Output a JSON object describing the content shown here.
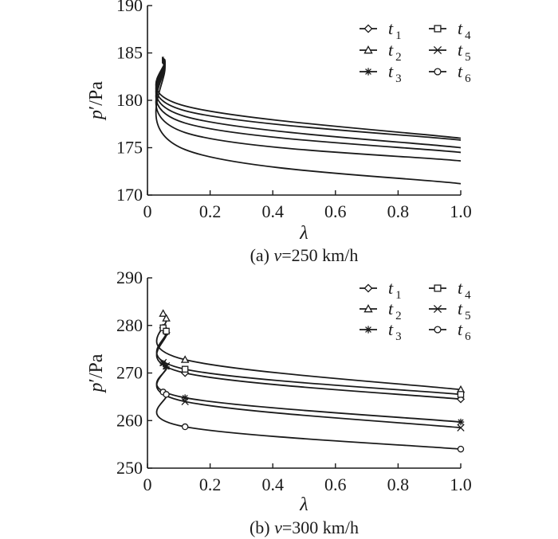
{
  "chart_data": [
    {
      "type": "line",
      "caption_prefix": "(a) ",
      "caption_var": "v",
      "caption_rest": "=250 km/h",
      "xlabel": "λ",
      "ylabel": "p",
      "ylabel_prime": "′",
      "ylabel_unit": "/Pa",
      "xlim": [
        0,
        1.0
      ],
      "ylim": [
        170,
        190
      ],
      "x_ticks": [
        "0",
        "0.2",
        "0.4",
        "0.6",
        "0.8",
        "1.0"
      ],
      "x_tick_values": [
        0,
        0.2,
        0.4,
        0.6,
        0.8,
        1.0
      ],
      "y_ticks": [
        "170",
        "175",
        "180",
        "185",
        "190"
      ],
      "y_tick_values": [
        170,
        175,
        180,
        185,
        190
      ],
      "legend_position": "top-right",
      "markers_shown": false,
      "series": [
        {
          "name": "t1",
          "marker": "diamond",
          "x": [
            0.05,
            0.055,
            0.12,
            1.0
          ],
          "y": [
            184.6,
            184.3,
            179.4,
            176.0
          ]
        },
        {
          "name": "t2",
          "marker": "triangle",
          "x": [
            0.05,
            0.055,
            0.12,
            1.0
          ],
          "y": [
            184.5,
            184.2,
            178.9,
            175.8
          ]
        },
        {
          "name": "t3",
          "marker": "asterisk",
          "x": [
            0.05,
            0.055,
            0.12,
            1.0
          ],
          "y": [
            184.4,
            184.1,
            178.3,
            175.0
          ]
        },
        {
          "name": "t4",
          "marker": "square",
          "x": [
            0.05,
            0.055,
            0.12,
            1.0
          ],
          "y": [
            184.3,
            184.0,
            177.6,
            174.5
          ]
        },
        {
          "name": "t5",
          "marker": "cross",
          "x": [
            0.05,
            0.055,
            0.12,
            1.0
          ],
          "y": [
            184.2,
            183.9,
            176.6,
            173.6
          ]
        },
        {
          "name": "t6",
          "marker": "circle",
          "x": [
            0.05,
            0.055,
            0.12,
            1.0
          ],
          "y": [
            184.1,
            183.7,
            174.8,
            171.2
          ]
        }
      ]
    },
    {
      "type": "line",
      "caption_prefix": "(b)  ",
      "caption_var": "v",
      "caption_rest": "=300 km/h",
      "xlabel": "λ",
      "ylabel": "p",
      "ylabel_prime": "′",
      "ylabel_unit": "/Pa",
      "xlim": [
        0,
        1.0
      ],
      "ylim": [
        250,
        290
      ],
      "x_ticks": [
        "0",
        "0.2",
        "0.4",
        "0.6",
        "0.8",
        "1.0"
      ],
      "x_tick_values": [
        0,
        0.2,
        0.4,
        0.6,
        0.8,
        1.0
      ],
      "y_ticks": [
        "250",
        "260",
        "270",
        "280",
        "290"
      ],
      "y_tick_values": [
        250,
        260,
        270,
        280,
        290
      ],
      "legend_position": "top-right",
      "markers_shown": true,
      "series": [
        {
          "name": "t1",
          "marker": "diamond",
          "x": [
            0.05,
            0.06,
            0.12,
            1.0
          ],
          "y": [
            279.5,
            278.5,
            270.0,
            264.5
          ]
        },
        {
          "name": "t2",
          "marker": "triangle",
          "x": [
            0.05,
            0.06,
            0.12,
            1.0
          ],
          "y": [
            282.5,
            281.5,
            272.8,
            266.5
          ]
        },
        {
          "name": "t3",
          "marker": "asterisk",
          "x": [
            0.05,
            0.06,
            0.12,
            1.0
          ],
          "y": [
            272.0,
            271.3,
            264.8,
            259.7
          ]
        },
        {
          "name": "t4",
          "marker": "square",
          "x": [
            0.05,
            0.06,
            0.12,
            1.0
          ],
          "y": [
            279.5,
            278.8,
            270.8,
            265.5
          ]
        },
        {
          "name": "t5",
          "marker": "cross",
          "x": [
            0.05,
            0.06,
            0.12,
            1.0
          ],
          "y": [
            272.2,
            271.5,
            264.0,
            258.5
          ]
        },
        {
          "name": "t6",
          "marker": "circle",
          "x": [
            0.05,
            0.06,
            0.12,
            1.0
          ],
          "y": [
            266.0,
            265.5,
            258.7,
            254.0
          ]
        }
      ]
    }
  ],
  "legend": [
    {
      "var": "t",
      "sub": "1",
      "marker": "diamond"
    },
    {
      "var": "t",
      "sub": "2",
      "marker": "triangle"
    },
    {
      "var": "t",
      "sub": "3",
      "marker": "asterisk"
    },
    {
      "var": "t",
      "sub": "4",
      "marker": "square"
    },
    {
      "var": "t",
      "sub": "5",
      "marker": "cross"
    },
    {
      "var": "t",
      "sub": "6",
      "marker": "circle"
    }
  ]
}
